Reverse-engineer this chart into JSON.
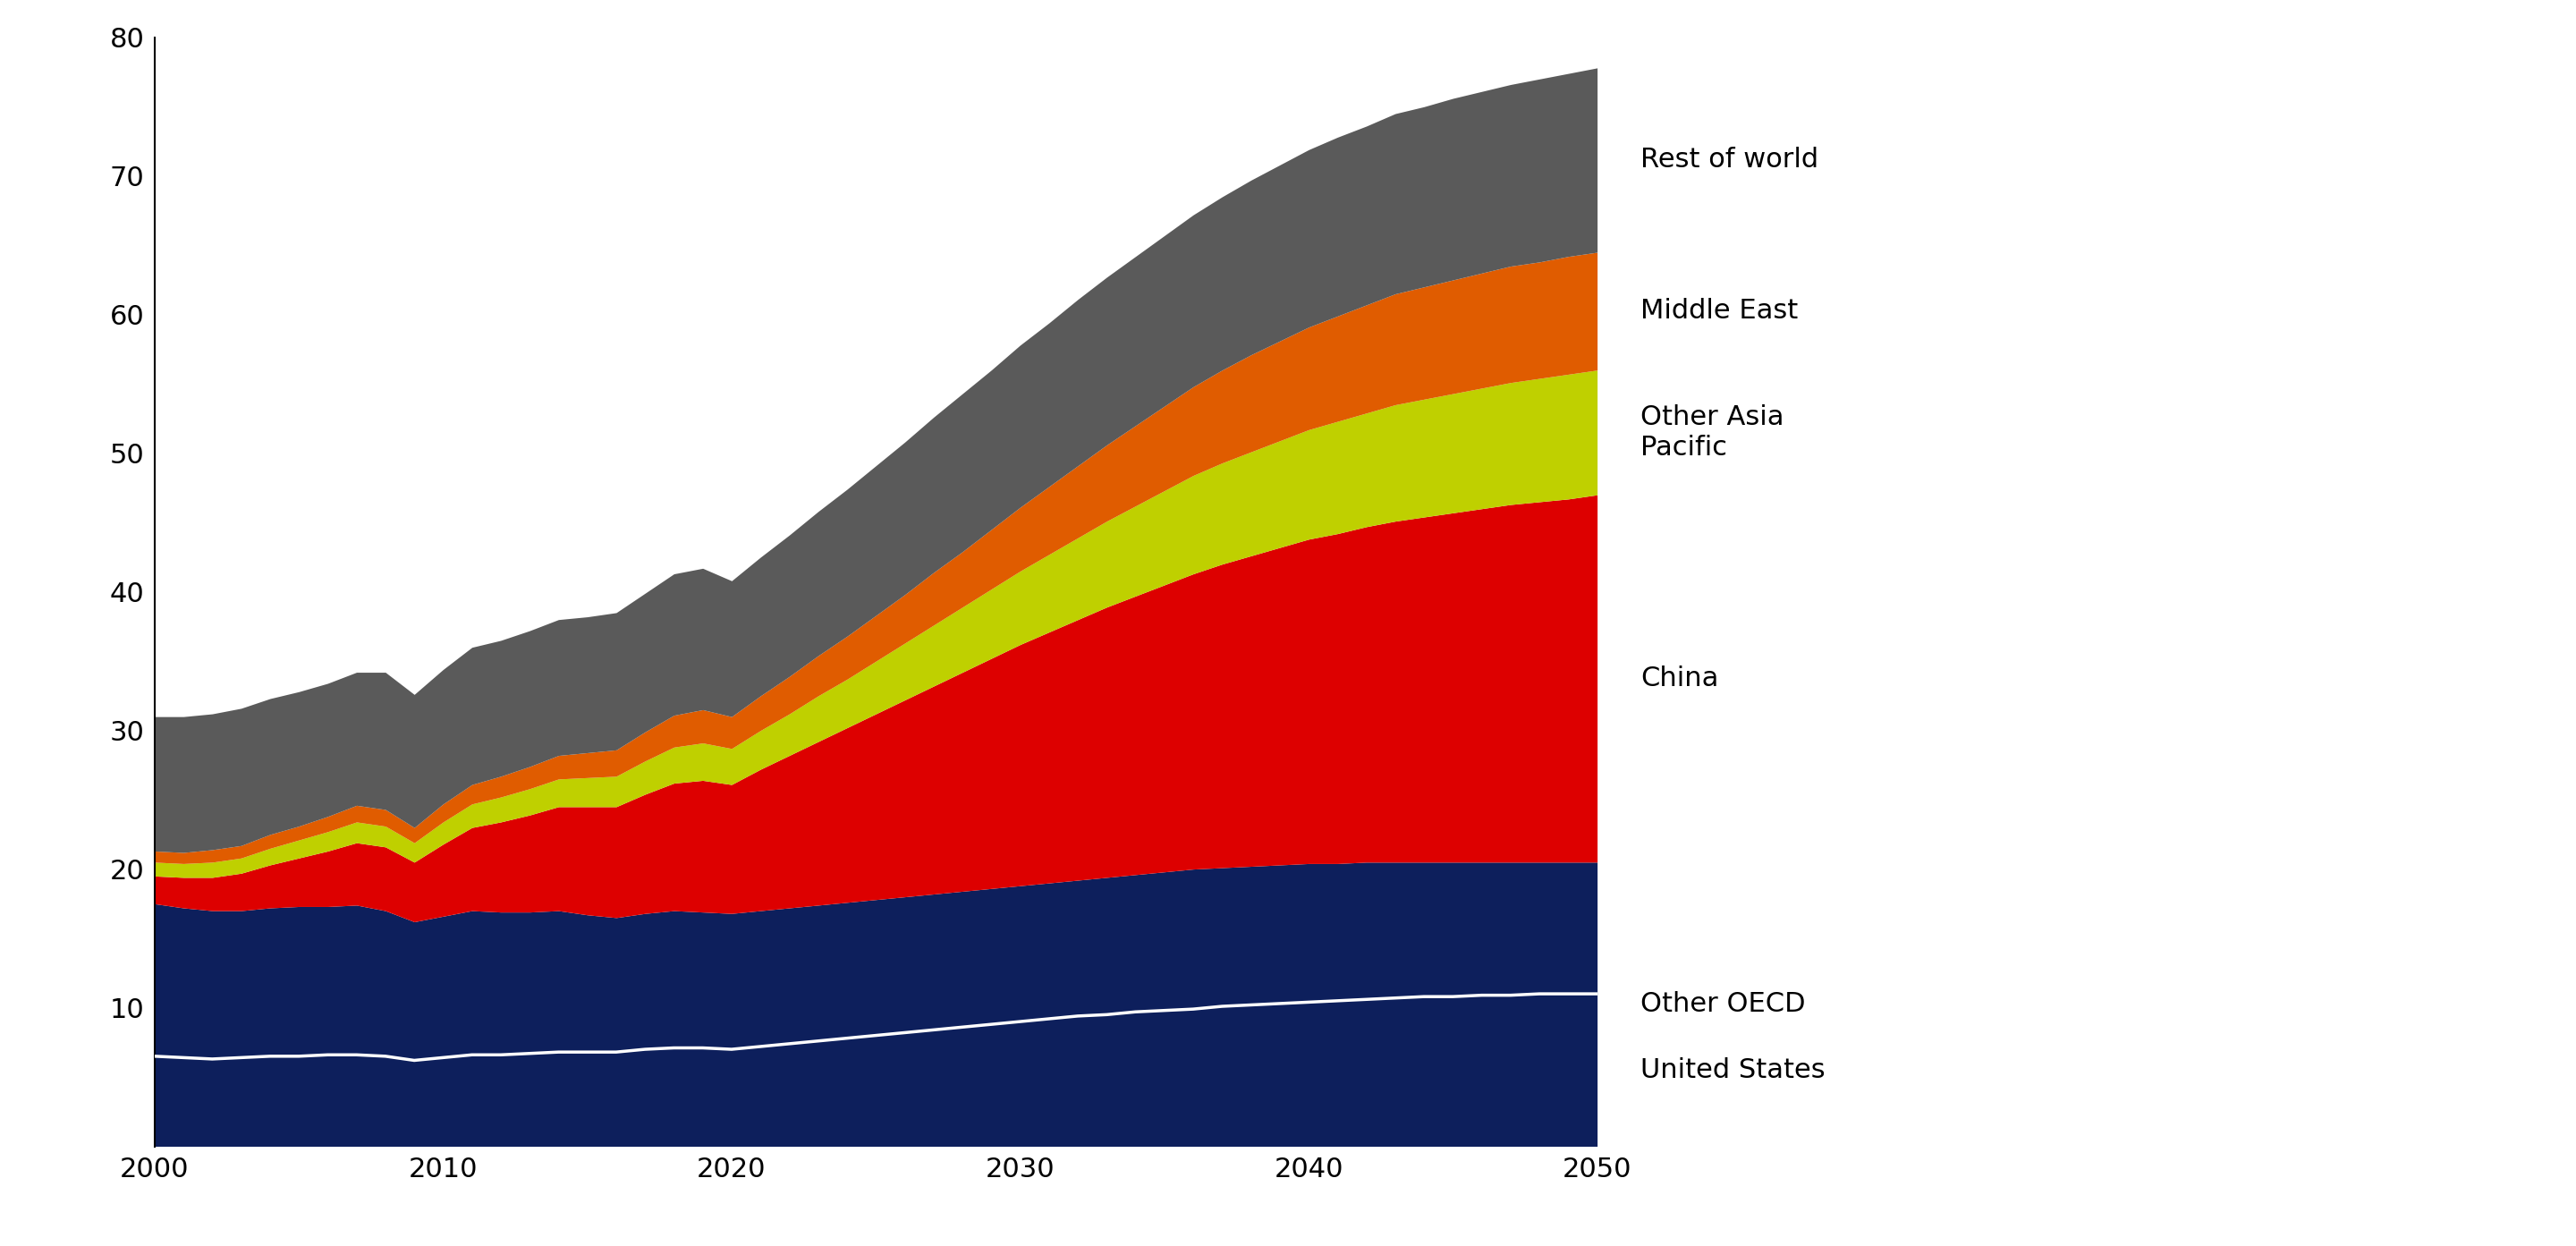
{
  "years": [
    2000,
    2001,
    2002,
    2003,
    2004,
    2005,
    2006,
    2007,
    2008,
    2009,
    2010,
    2011,
    2012,
    2013,
    2014,
    2015,
    2016,
    2017,
    2018,
    2019,
    2020,
    2021,
    2022,
    2023,
    2024,
    2025,
    2026,
    2027,
    2028,
    2029,
    2030,
    2031,
    2032,
    2033,
    2034,
    2035,
    2036,
    2037,
    2038,
    2039,
    2040,
    2041,
    2042,
    2043,
    2044,
    2045,
    2046,
    2047,
    2048,
    2049,
    2050
  ],
  "united_states": [
    6.5,
    6.4,
    6.3,
    6.4,
    6.5,
    6.5,
    6.6,
    6.6,
    6.5,
    6.2,
    6.4,
    6.6,
    6.6,
    6.7,
    6.8,
    6.8,
    6.8,
    7.0,
    7.1,
    7.1,
    7.0,
    7.2,
    7.4,
    7.6,
    7.8,
    8.0,
    8.2,
    8.4,
    8.6,
    8.8,
    9.0,
    9.2,
    9.4,
    9.5,
    9.7,
    9.8,
    9.9,
    10.1,
    10.2,
    10.3,
    10.4,
    10.5,
    10.6,
    10.7,
    10.8,
    10.8,
    10.9,
    10.9,
    11.0,
    11.0,
    11.0
  ],
  "other_oecd": [
    17.5,
    17.2,
    17.0,
    17.0,
    17.2,
    17.3,
    17.3,
    17.4,
    17.0,
    16.2,
    16.6,
    17.0,
    16.9,
    16.9,
    17.0,
    16.7,
    16.5,
    16.8,
    17.0,
    16.9,
    16.8,
    17.0,
    17.2,
    17.4,
    17.6,
    17.8,
    18.0,
    18.2,
    18.4,
    18.6,
    18.8,
    19.0,
    19.2,
    19.4,
    19.6,
    19.8,
    20.0,
    20.1,
    20.2,
    20.3,
    20.4,
    20.4,
    20.5,
    20.5,
    20.5,
    20.5,
    20.5,
    20.5,
    20.5,
    20.5,
    20.5
  ],
  "china": [
    2.0,
    2.2,
    2.4,
    2.7,
    3.1,
    3.5,
    4.0,
    4.5,
    4.6,
    4.3,
    5.2,
    6.0,
    6.5,
    7.0,
    7.5,
    7.8,
    8.0,
    8.6,
    9.2,
    9.5,
    9.3,
    10.2,
    11.0,
    11.8,
    12.6,
    13.4,
    14.2,
    15.0,
    15.8,
    16.6,
    17.4,
    18.1,
    18.8,
    19.5,
    20.1,
    20.7,
    21.3,
    21.9,
    22.4,
    22.9,
    23.4,
    23.8,
    24.2,
    24.6,
    24.9,
    25.2,
    25.5,
    25.8,
    26.0,
    26.2,
    26.5
  ],
  "other_asia_pacific": [
    1.0,
    1.0,
    1.1,
    1.1,
    1.2,
    1.3,
    1.4,
    1.5,
    1.5,
    1.4,
    1.6,
    1.7,
    1.8,
    1.9,
    2.0,
    2.1,
    2.2,
    2.4,
    2.6,
    2.7,
    2.6,
    2.8,
    3.0,
    3.3,
    3.5,
    3.8,
    4.1,
    4.4,
    4.7,
    5.0,
    5.3,
    5.6,
    5.9,
    6.2,
    6.5,
    6.8,
    7.1,
    7.3,
    7.5,
    7.7,
    7.9,
    8.1,
    8.2,
    8.4,
    8.5,
    8.6,
    8.7,
    8.8,
    8.9,
    9.0,
    9.0
  ],
  "middle_east": [
    0.8,
    0.8,
    0.9,
    0.9,
    1.0,
    1.0,
    1.1,
    1.2,
    1.2,
    1.1,
    1.3,
    1.4,
    1.5,
    1.6,
    1.7,
    1.8,
    1.9,
    2.1,
    2.3,
    2.4,
    2.3,
    2.5,
    2.7,
    2.9,
    3.1,
    3.3,
    3.5,
    3.8,
    4.0,
    4.3,
    4.6,
    4.9,
    5.2,
    5.5,
    5.8,
    6.1,
    6.4,
    6.7,
    7.0,
    7.2,
    7.4,
    7.6,
    7.8,
    8.0,
    8.1,
    8.2,
    8.3,
    8.4,
    8.4,
    8.5,
    8.5
  ],
  "rest_of_world": [
    9.7,
    9.8,
    9.8,
    9.9,
    9.8,
    9.7,
    9.6,
    9.6,
    9.9,
    9.6,
    9.7,
    9.9,
    9.8,
    9.8,
    9.8,
    9.8,
    9.9,
    10.0,
    10.2,
    10.2,
    9.8,
    10.0,
    10.2,
    10.4,
    10.6,
    10.8,
    11.0,
    11.2,
    11.4,
    11.5,
    11.7,
    11.8,
    12.0,
    12.1,
    12.2,
    12.3,
    12.4,
    12.5,
    12.6,
    12.7,
    12.8,
    12.9,
    12.9,
    13.0,
    13.0,
    13.1,
    13.1,
    13.1,
    13.2,
    13.2,
    13.3
  ],
  "colors": {
    "other_oecd": "#0d1f5c",
    "china": "#dd0000",
    "other_asia_pacific": "#bfd000",
    "middle_east": "#e05c00",
    "rest_of_world": "#5a5a5a",
    "us_line": "#ffffff"
  },
  "labels": {
    "united_states": "United States",
    "other_oecd": "Other OECD",
    "china": "China",
    "other_asia_pacific": "Other Asia\nPacific",
    "middle_east": "Middle East",
    "rest_of_world": "Rest of world"
  },
  "ylim": [
    0,
    80
  ],
  "yticks": [
    0,
    10,
    20,
    30,
    40,
    50,
    60,
    70,
    80
  ],
  "xlim": [
    2000,
    2050
  ],
  "xticks": [
    2000,
    2010,
    2020,
    2030,
    2040,
    2050
  ],
  "background_color": "#ffffff",
  "label_fontsize": 22,
  "tick_fontsize": 22
}
